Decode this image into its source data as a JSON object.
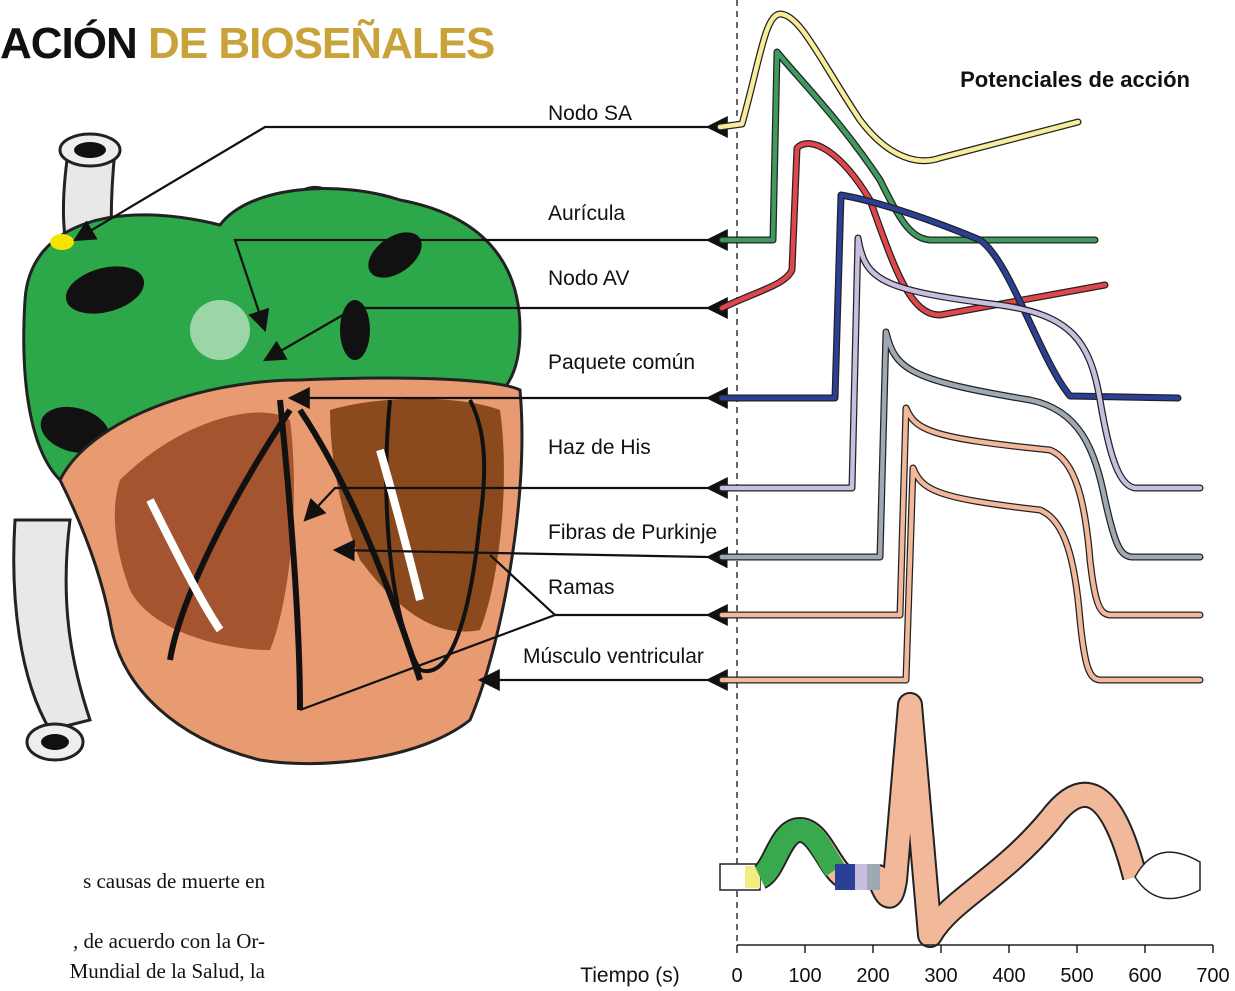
{
  "header": {
    "title_dark": "ACIÓN",
    "title_gold": "DE BIOSEÑALES"
  },
  "panel_title": "Potenciales de acción",
  "labels": [
    "Nodo SA",
    "Aurícula",
    "Nodo AV",
    "Paquete común",
    "Haz de His",
    "Fibras de Purkinje",
    "Ramas",
    "Músculo ventricular"
  ],
  "axis": {
    "label": "Tiempo (s)",
    "ticks": [
      0,
      100,
      200,
      300,
      400,
      500,
      600,
      700
    ]
  },
  "body_text": [
    "s causas de muerte en",
    ", de acuerdo con la Or-",
    "Mundial de la Salud, la"
  ]
}
